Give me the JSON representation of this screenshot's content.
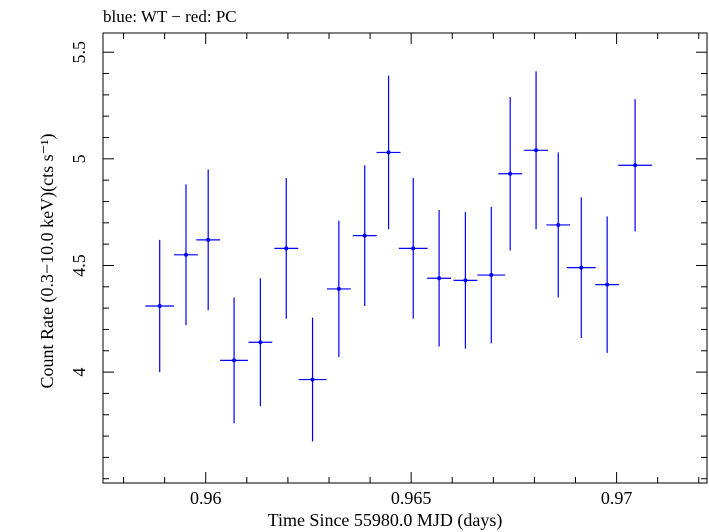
{
  "chart_data": {
    "type": "scatter",
    "title": "blue: WT − red: PC",
    "xlabel": "Time Since 55980.0 MJD (days)",
    "ylabel": "Count Rate (0.3−10.0 keV)(cts s⁻¹)",
    "xlim": [
      0.9575,
      0.9722
    ],
    "ylim": [
      3.48,
      5.59
    ],
    "x_ticks": [
      0.96,
      0.965,
      0.97
    ],
    "x_tick_labels": [
      "0.96",
      "0.965",
      "0.97"
    ],
    "x_minor_step": 0.001,
    "y_ticks": [
      4,
      4.5,
      5,
      5.5
    ],
    "y_tick_labels": [
      "4",
      "4.5",
      "5",
      "5.5"
    ],
    "y_minor_step": 0.1,
    "grid": false,
    "color": "#0000ff",
    "series": [
      {
        "points": [
          {
            "x": 0.95888,
            "y": 4.31,
            "xerr": 0.00035,
            "yerr": 0.31
          },
          {
            "x": 0.95952,
            "y": 4.55,
            "xerr": 0.00029,
            "yerr": 0.33
          },
          {
            "x": 0.96006,
            "y": 4.62,
            "xerr": 0.00029,
            "yerr": 0.33
          },
          {
            "x": 0.96069,
            "y": 4.055,
            "xerr": 0.00034,
            "yerr": 0.295
          },
          {
            "x": 0.96133,
            "y": 4.14,
            "xerr": 0.00029,
            "yerr": 0.3
          },
          {
            "x": 0.96196,
            "y": 4.58,
            "xerr": 0.00029,
            "yerr": 0.33
          },
          {
            "x": 0.9626,
            "y": 3.965,
            "xerr": 0.00034,
            "yerr": 0.29
          },
          {
            "x": 0.96324,
            "y": 4.39,
            "xerr": 0.00029,
            "yerr": 0.32
          },
          {
            "x": 0.96387,
            "y": 4.64,
            "xerr": 0.00029,
            "yerr": 0.33
          },
          {
            "x": 0.96445,
            "y": 5.03,
            "xerr": 0.00029,
            "yerr": 0.36
          },
          {
            "x": 0.96505,
            "y": 4.58,
            "xerr": 0.00035,
            "yerr": 0.33
          },
          {
            "x": 0.96568,
            "y": 4.44,
            "xerr": 0.00029,
            "yerr": 0.32
          },
          {
            "x": 0.96632,
            "y": 4.43,
            "xerr": 0.00029,
            "yerr": 0.32
          },
          {
            "x": 0.96695,
            "y": 4.455,
            "xerr": 0.00034,
            "yerr": 0.32
          },
          {
            "x": 0.96741,
            "y": 4.93,
            "xerr": 0.00029,
            "yerr": 0.36
          },
          {
            "x": 0.96804,
            "y": 5.04,
            "xerr": 0.00029,
            "yerr": 0.37
          },
          {
            "x": 0.96858,
            "y": 4.69,
            "xerr": 0.00029,
            "yerr": 0.34
          },
          {
            "x": 0.96914,
            "y": 4.49,
            "xerr": 0.00035,
            "yerr": 0.33
          },
          {
            "x": 0.96977,
            "y": 4.41,
            "xerr": 0.00029,
            "yerr": 0.32
          },
          {
            "x": 0.97045,
            "y": 4.97,
            "xerr": 0.00041,
            "yerr": 0.31
          }
        ]
      }
    ]
  }
}
